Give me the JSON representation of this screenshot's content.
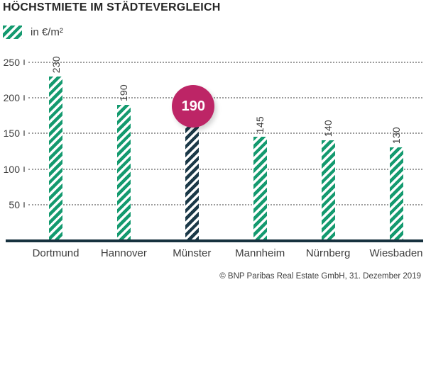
{
  "title": "HÖCHSTMIETE IM STÄDTEVERGLEICH",
  "legend": {
    "label": "in €/m²",
    "swatch_icon": "green-diagonal-hatch-swatch"
  },
  "footer": {
    "copyright": "© BNP Paribas Real Estate GmbH, 31. Dezember 2019"
  },
  "colors": {
    "bar_green": "#149a6f",
    "bar_dark": "#1b3948",
    "axis": "#17323f",
    "badge_magenta": "#bd2566",
    "grid_dots": "#9c9c9c",
    "text_dark": "#262626",
    "text_gray": "#3d3d3d"
  },
  "chart_data": {
    "type": "bar",
    "title": "HÖCHSTMIETE IM STÄDTEVERGLEICH",
    "unit_label": "in €/m²",
    "categories": [
      "Dortmund",
      "Hannover",
      "Münster",
      "Mannheim",
      "Nürnberg",
      "Wiesbaden"
    ],
    "values": [
      230,
      190,
      190,
      145,
      140,
      130
    ],
    "value_labels": [
      "230",
      "190",
      "190",
      "145",
      "140",
      "130"
    ],
    "highlight_index": 2,
    "highlight_badge_label": "190",
    "yticks": [
      50,
      100,
      150,
      200,
      250
    ],
    "ylim": [
      0,
      250
    ],
    "grid": "dotted-horizontal",
    "legend_position": "top-left",
    "bar_orientation": "vertical"
  }
}
